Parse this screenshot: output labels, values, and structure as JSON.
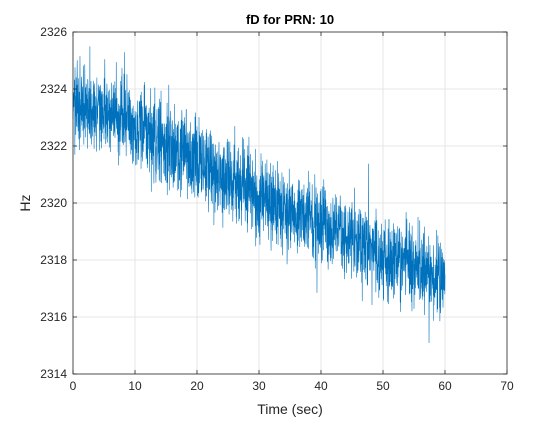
{
  "chart_data": {
    "type": "line",
    "title": "fD for PRN: 10",
    "xlabel": "Time (sec)",
    "ylabel": "Hz",
    "xlim": [
      0,
      70
    ],
    "ylim": [
      2314,
      2326
    ],
    "xticks": [
      "0",
      "10",
      "20",
      "30",
      "40",
      "50",
      "60",
      "70"
    ],
    "yticks": [
      "2314",
      "2316",
      "2318",
      "2320",
      "2322",
      "2324",
      "2326"
    ],
    "grid": true,
    "line_color": "#0072BD",
    "series": [
      {
        "x": [
          0,
          2,
          4,
          6,
          8,
          10,
          12,
          14,
          16,
          18,
          20,
          22,
          24,
          26,
          28,
          30,
          32,
          34,
          36,
          38,
          40,
          42,
          44,
          46,
          48,
          50,
          52,
          54,
          56,
          58,
          60
        ],
        "y": [
          2323.6,
          2323.4,
          2323.2,
          2323.1,
          2322.9,
          2322.6,
          2322.4,
          2322.2,
          2321.9,
          2321.7,
          2321.4,
          2321.2,
          2321.0,
          2320.7,
          2320.5,
          2320.3,
          2320.0,
          2319.8,
          2319.6,
          2319.4,
          2319.2,
          2319.0,
          2318.8,
          2318.6,
          2318.4,
          2318.2,
          2318.0,
          2317.8,
          2317.6,
          2317.4,
          2317.3
        ]
      }
    ]
  }
}
